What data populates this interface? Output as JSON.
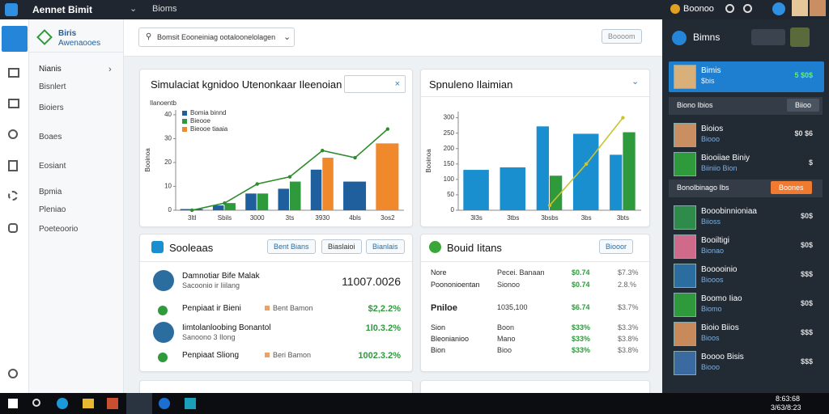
{
  "topbar": {
    "app": "Aennet Bimit",
    "tab": "Bioms",
    "user": "Boonoo"
  },
  "nav": {
    "brand": "Biris",
    "brand_sub": "Awenaooes",
    "items": [
      "Nianis",
      "Bisnlert",
      "Bioiers",
      "Boaes",
      "Eosiant",
      "Bpmia",
      "Pleniao",
      "Poeteoorio"
    ]
  },
  "search": {
    "placeholder": "Bomsit Eooneiniag ootaloonelolagen",
    "button": "Boooom"
  },
  "cards": [
    {
      "title": "Simulaciat kgnidoo Utenonkaar Ileenoian",
      "chart": {
        "type": "bar",
        "ylabel": "Ilanoentb",
        "axis_title": "Booinoa",
        "categories": [
          "3ltl",
          "Sbils",
          "3000",
          "3ts",
          "3930",
          "4bls",
          "3os2"
        ],
        "series": [
          {
            "name": "Bomia binnd",
            "color": "#1f5f9e",
            "values": [
              0.5,
              2,
              7,
              9,
              17,
              12,
              null
            ]
          },
          {
            "name": "Bieooe",
            "color": "#2e9a3c",
            "values": [
              null,
              3,
              7,
              12,
              null,
              null,
              null
            ]
          },
          {
            "name": "Bieooe tiaaia",
            "color": "#f0882c",
            "values": [
              null,
              null,
              null,
              null,
              22,
              null,
              28
            ]
          },
          {
            "kind": "line",
            "color": "#2e8b2e",
            "values": [
              0,
              3,
              11,
              14,
              25,
              22,
              34
            ]
          }
        ],
        "ylim": [
          0,
          42
        ],
        "yticks": [
          0,
          10,
          20,
          30,
          40
        ]
      }
    },
    {
      "title": "Spnuleno Ilaimian",
      "chart": {
        "type": "bar",
        "axis_title": "Booinoa",
        "categories": [
          "3l3s",
          "3tbs",
          "3bsbs",
          "3bs",
          "3bts"
        ],
        "series": [
          {
            "color": "#1a8fd0",
            "values": [
              131,
              139,
              272,
              248,
              180
            ]
          },
          {
            "color": "#2e9a3c",
            "values": [
              null,
              null,
              112,
              null,
              253
            ]
          },
          {
            "kind": "line",
            "color": "#c9c430",
            "values": [
              null,
              null,
              16,
              150,
              300
            ]
          }
        ],
        "ylim": [
          0,
          320
        ],
        "yticks": [
          0,
          50,
          100,
          150,
          200,
          250,
          300
        ]
      }
    }
  ],
  "sales": {
    "title": "Sooleaas",
    "buttons": [
      "Bent Bians",
      "Biaslaioi",
      "Bianlais"
    ],
    "rows": [
      {
        "name": "Damnotiar Bife Malak",
        "sub": "Sacoonio ir Iiilang",
        "value": "11007.0026"
      },
      {
        "name": "Penpiaat ir Bieni",
        "tag": "Bent Bamon",
        "value": "$2,2.2%"
      },
      {
        "name": "Iimtolanloobing Bonantol",
        "sub": "Sanoono 3 Ilong",
        "value": "1l0.3.2%"
      },
      {
        "name": "Penpiaat Sliong",
        "tag": "Beri Bamon",
        "value": "1002.3.2%"
      }
    ]
  },
  "items": {
    "title": "Bouid Iitans",
    "button": "Biooor",
    "rows": [
      [
        "Nore",
        "Pecei. Banaan",
        "$0.74",
        "$7.3%"
      ],
      [
        "Poononioentan",
        "Sionoo",
        "$0.74",
        "2.8.%"
      ],
      [
        "Pniloe",
        "1035,100",
        "$6.74",
        "$3.7%"
      ],
      [
        "Sion",
        "Boon",
        "$33%",
        "$3.3%"
      ],
      [
        "Bleonianioo",
        "Mano",
        "$33%",
        "$3.8%"
      ],
      [
        "Bion",
        "Bioo",
        "$33%",
        "$3.8%"
      ]
    ]
  },
  "panel": {
    "title": "Bimns",
    "items": [
      {
        "name": "Bimis",
        "sub": "$bis",
        "value": "5 $0$"
      },
      {
        "name": "Biono Ibios",
        "button": "Biioo"
      },
      {
        "name": "Bioios",
        "sub": "Biooo",
        "value": "$0 $6"
      },
      {
        "name": "Biooiiae Biniy",
        "sub": "Biiniio Bion",
        "value": "$"
      },
      {
        "name": "Bonolbinago Ibs",
        "button": "Boones"
      },
      {
        "name": "Booobinnioniaa",
        "sub": "Biioss",
        "value": "$0$"
      },
      {
        "name": "Booiltigi",
        "sub": "Bionao",
        "value": "$0$"
      },
      {
        "name": "Booooinio",
        "sub": "Biooos",
        "value": "$$$"
      },
      {
        "name": "Boomo Iiao",
        "sub": "Biomo",
        "value": "$0$"
      },
      {
        "name": "Bioio Biios",
        "sub": "Bioos",
        "value": "$$$"
      },
      {
        "name": "Boooo Bisis",
        "sub": "Biooo",
        "value": "$$$"
      }
    ]
  },
  "taskbar": {
    "time": "8:63:68",
    "date": "3/63/8:23"
  }
}
